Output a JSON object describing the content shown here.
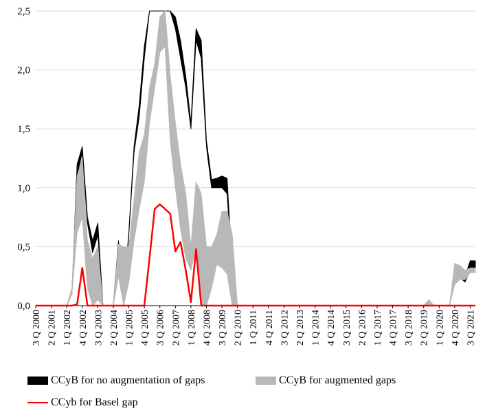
{
  "chart_data": {
    "type": "area",
    "title": "",
    "xlabel": "",
    "ylabel": "",
    "ylim": [
      0,
      2.5
    ],
    "y_ticks": [
      "0,0",
      "0,5",
      "1,0",
      "1,5",
      "2,0",
      "2,5"
    ],
    "x_tick_labels": [
      "3 Q 2000",
      "2 Q 2001",
      "1 Q 2002",
      "4 Q 2002",
      "3 Q 2003",
      "2 Q 2004",
      "1 Q 2005",
      "4 Q 2005",
      "3 Q 2006",
      "2 Q 2007",
      "1 Q 2008",
      "4 Q 2008",
      "3 Q 2009",
      "2 Q 2010",
      "1 Q 2011",
      "4 Q 2011",
      "3 Q 2012",
      "2 Q 2013",
      "1 Q 2014",
      "4 Q 2014",
      "3 Q 2015",
      "2 Q 2016",
      "1 Q 2017",
      "4 Q 2017",
      "3 Q 2018",
      "2 Q 2019",
      "1 Q 2020",
      "4 Q 2020",
      "3 Q 2021"
    ],
    "x_start": "3 Q 2000",
    "x_end": "4 Q 2021",
    "grid": "horizontal",
    "legend_position": "bottom",
    "series": [
      {
        "name": "CCyB for no augmentation of gaps",
        "color": "#000000",
        "points": [
          [
            "4 Q 2001",
            0,
            0
          ],
          [
            "1 Q 2002",
            0,
            0
          ],
          [
            "2 Q 2002",
            0.1,
            0.1
          ],
          [
            "3 Q 2002",
            1.1,
            1.2
          ],
          [
            "4 Q 2002",
            1.3,
            1.35
          ],
          [
            "1 Q 2003",
            0.7,
            0.75
          ],
          [
            "2 Q 2003",
            0.45,
            0.55
          ],
          [
            "3 Q 2003",
            0.6,
            0.7
          ],
          [
            "4 Q 2003",
            0,
            0
          ],
          [
            "1 Q 2004",
            0,
            0
          ],
          [
            "2 Q 2004",
            0,
            0
          ],
          [
            "3 Q 2004",
            0.5,
            0.55
          ],
          [
            "4 Q 2004",
            0.05,
            0.1
          ],
          [
            "1 Q 2005",
            0.6,
            0.62
          ],
          [
            "2 Q 2005",
            1.3,
            1.35
          ],
          [
            "3 Q 2005",
            1.6,
            1.7
          ],
          [
            "4 Q 2005",
            2.1,
            2.2
          ],
          [
            "1 Q 2006",
            2.5,
            2.5
          ],
          [
            "2 Q 2006",
            2.5,
            2.5
          ],
          [
            "3 Q 2006",
            2.5,
            2.5
          ],
          [
            "4 Q 2006",
            2.5,
            2.5
          ],
          [
            "1 Q 2007",
            2.5,
            2.5
          ],
          [
            "2 Q 2007",
            2.35,
            2.45
          ],
          [
            "3 Q 2007",
            2.1,
            2.25
          ],
          [
            "4 Q 2007",
            1.85,
            1.95
          ],
          [
            "1 Q 2008",
            1.5,
            1.55
          ],
          [
            "2 Q 2008",
            2.25,
            2.35
          ],
          [
            "3 Q 2008",
            2.1,
            2.25
          ],
          [
            "4 Q 2008",
            1.35,
            1.4
          ],
          [
            "1 Q 2009",
            1.0,
            1.07
          ],
          [
            "2 Q 2009",
            1.0,
            1.08
          ],
          [
            "3 Q 2009",
            1.0,
            1.1
          ],
          [
            "4 Q 2009",
            0.95,
            1.08
          ],
          [
            "1 Q 2010",
            0.25,
            0.3
          ],
          [
            "2 Q 2010",
            0,
            0
          ],
          [
            "3 Q 2020",
            0,
            0
          ],
          [
            "4 Q 2020",
            0.28,
            0.3
          ],
          [
            "1 Q 2021",
            0.24,
            0.3
          ],
          [
            "2 Q 2021",
            0.2,
            0.25
          ],
          [
            "3 Q 2021",
            0.3,
            0.38
          ],
          [
            "4 Q 2021",
            0.3,
            0.38
          ]
        ]
      },
      {
        "name": "CCyB for augmented gaps",
        "color": "#b8b8b8",
        "points": [
          [
            "4 Q 2001",
            0,
            0
          ],
          [
            "1 Q 2002",
            0,
            0
          ],
          [
            "2 Q 2002",
            0.1,
            0.15
          ],
          [
            "3 Q 2002",
            0.62,
            1.1
          ],
          [
            "4 Q 2002",
            0.75,
            1.25
          ],
          [
            "1 Q 2003",
            0.15,
            0.55
          ],
          [
            "2 Q 2003",
            0.0,
            0.4
          ],
          [
            "3 Q 2003",
            0.05,
            0.5
          ],
          [
            "4 Q 2003",
            0,
            0
          ],
          [
            "1 Q 2004",
            0,
            0
          ],
          [
            "2 Q 2004",
            0,
            0
          ],
          [
            "3 Q 2004",
            0.25,
            0.52
          ],
          [
            "4 Q 2004",
            0.0,
            0.5
          ],
          [
            "1 Q 2005",
            0.2,
            0.5
          ],
          [
            "2 Q 2005",
            0.55,
            0.9
          ],
          [
            "3 Q 2005",
            0.82,
            1.3
          ],
          [
            "4 Q 2005",
            1.05,
            1.45
          ],
          [
            "1 Q 2006",
            1.55,
            1.85
          ],
          [
            "2 Q 2006",
            1.85,
            2.05
          ],
          [
            "3 Q 2006",
            2.15,
            2.45
          ],
          [
            "4 Q 2006",
            2.2,
            2.5
          ],
          [
            "1 Q 2007",
            1.4,
            1.95
          ],
          [
            "2 Q 2007",
            1.0,
            1.55
          ],
          [
            "3 Q 2007",
            0.65,
            1.2
          ],
          [
            "4 Q 2007",
            0.4,
            0.95
          ],
          [
            "1 Q 2008",
            0.3,
            0.5
          ],
          [
            "2 Q 2008",
            0.5,
            1.05
          ],
          [
            "3 Q 2008",
            0.0,
            0.95
          ],
          [
            "4 Q 2008",
            0.0,
            0.5
          ],
          [
            "1 Q 2009",
            0.15,
            0.5
          ],
          [
            "2 Q 2009",
            0.35,
            0.6
          ],
          [
            "3 Q 2009",
            0.32,
            0.8
          ],
          [
            "4 Q 2009",
            0.27,
            0.8
          ],
          [
            "1 Q 2010",
            0.0,
            0.6
          ],
          [
            "2 Q 2010",
            0,
            0
          ],
          [
            "2 Q 2019",
            0,
            0
          ],
          [
            "3 Q 2019",
            0.0,
            0.05
          ],
          [
            "4 Q 2019",
            0,
            0
          ],
          [
            "3 Q 2020",
            0,
            0
          ],
          [
            "4 Q 2020",
            0.18,
            0.36
          ],
          [
            "1 Q 2021",
            0.22,
            0.34
          ],
          [
            "2 Q 2021",
            0.22,
            0.3
          ],
          [
            "3 Q 2021",
            0.28,
            0.32
          ],
          [
            "4 Q 2021",
            0.28,
            0.32
          ]
        ]
      },
      {
        "name": "CCyb for Basel gap",
        "color": "#ff0000",
        "points": [
          [
            "3 Q 2000",
            0
          ],
          [
            "2 Q 2002",
            0
          ],
          [
            "3 Q 2002",
            0.01
          ],
          [
            "4 Q 2002",
            0.32
          ],
          [
            "1 Q 2003",
            0
          ],
          [
            "4 Q 2005",
            0
          ],
          [
            "1 Q 2006",
            0.4
          ],
          [
            "2 Q 2006",
            0.82
          ],
          [
            "3 Q 2006",
            0.86
          ],
          [
            "4 Q 2006",
            0.82
          ],
          [
            "1 Q 2007",
            0.78
          ],
          [
            "2 Q 2007",
            0.46
          ],
          [
            "3 Q 2007",
            0.54
          ],
          [
            "4 Q 2007",
            0.3
          ],
          [
            "1 Q 2008",
            0.03
          ],
          [
            "2 Q 2008",
            0.48
          ],
          [
            "3 Q 2008",
            0
          ],
          [
            "4 Q 2021",
            0
          ]
        ]
      }
    ]
  }
}
